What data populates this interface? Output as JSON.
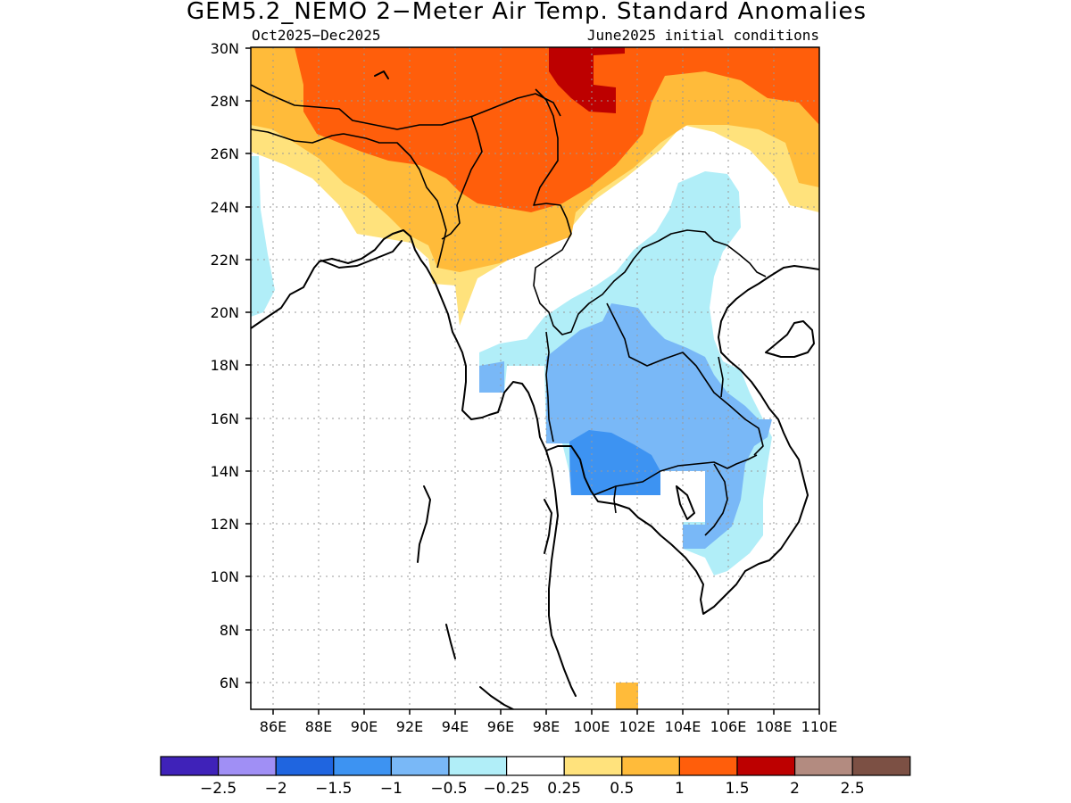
{
  "title": "GEM5.2_NEMO 2−Meter Air Temp. Standard Anomalies",
  "period": "Oct2025−Dec2025",
  "init": "June2025 initial conditions",
  "lat_labels": [
    "30N",
    "28N",
    "26N",
    "24N",
    "22N",
    "20N",
    "18N",
    "16N",
    "14N",
    "12N",
    "10N",
    "8N",
    "6N"
  ],
  "lon_labels": [
    "86E",
    "88E",
    "90E",
    "92E",
    "94E",
    "96E",
    "98E",
    "100E",
    "102E",
    "104E",
    "106E",
    "108E",
    "110E"
  ],
  "colorbar": {
    "colors": [
      "#3f22b9",
      "#a08ff5",
      "#1f65e0",
      "#3d93f2",
      "#79b8f7",
      "#b1eef8",
      "#ffffff",
      "#ffe27c",
      "#ffbb3a",
      "#ff5e0b",
      "#bd0000",
      "#b38b80",
      "#7c5044"
    ],
    "labels": [
      "−2.5",
      "−2",
      "−1.5",
      "−1",
      "−0.5",
      "−0.25",
      "0.25",
      "0.5",
      "1",
      "1.5",
      "2",
      "2.5"
    ]
  },
  "map_data": {
    "lon_range": [
      85,
      110
    ],
    "lat_range": [
      5,
      30
    ],
    "anomaly_regions": [
      {
        "level": "1.5 to 2",
        "area": "eastern Tibet near 100E 28-30N"
      },
      {
        "level": "1 to 1.5",
        "area": "Tibetan Plateau, northern Myanmar, southern China"
      },
      {
        "level": "0.5 to 1",
        "area": "Bhutan, northeast India, Myanmar north of 21N"
      },
      {
        "level": "0.25 to 0.5",
        "area": "Bangladesh, northern Bay of Bengal fringe"
      },
      {
        "level": "-0.5 to -0.25",
        "area": "Laos, Yunnan, central Vietnam, west Bay of Bengal"
      },
      {
        "level": "-1 to -0.5",
        "area": "Thailand, Cambodia, southern Laos"
      },
      {
        "level": "-1.5 to -1",
        "area": "central Thailand near 100E 13-15N"
      },
      {
        "level": "0.5 to 1",
        "area": "small patch near 101E 5-6N"
      }
    ]
  }
}
